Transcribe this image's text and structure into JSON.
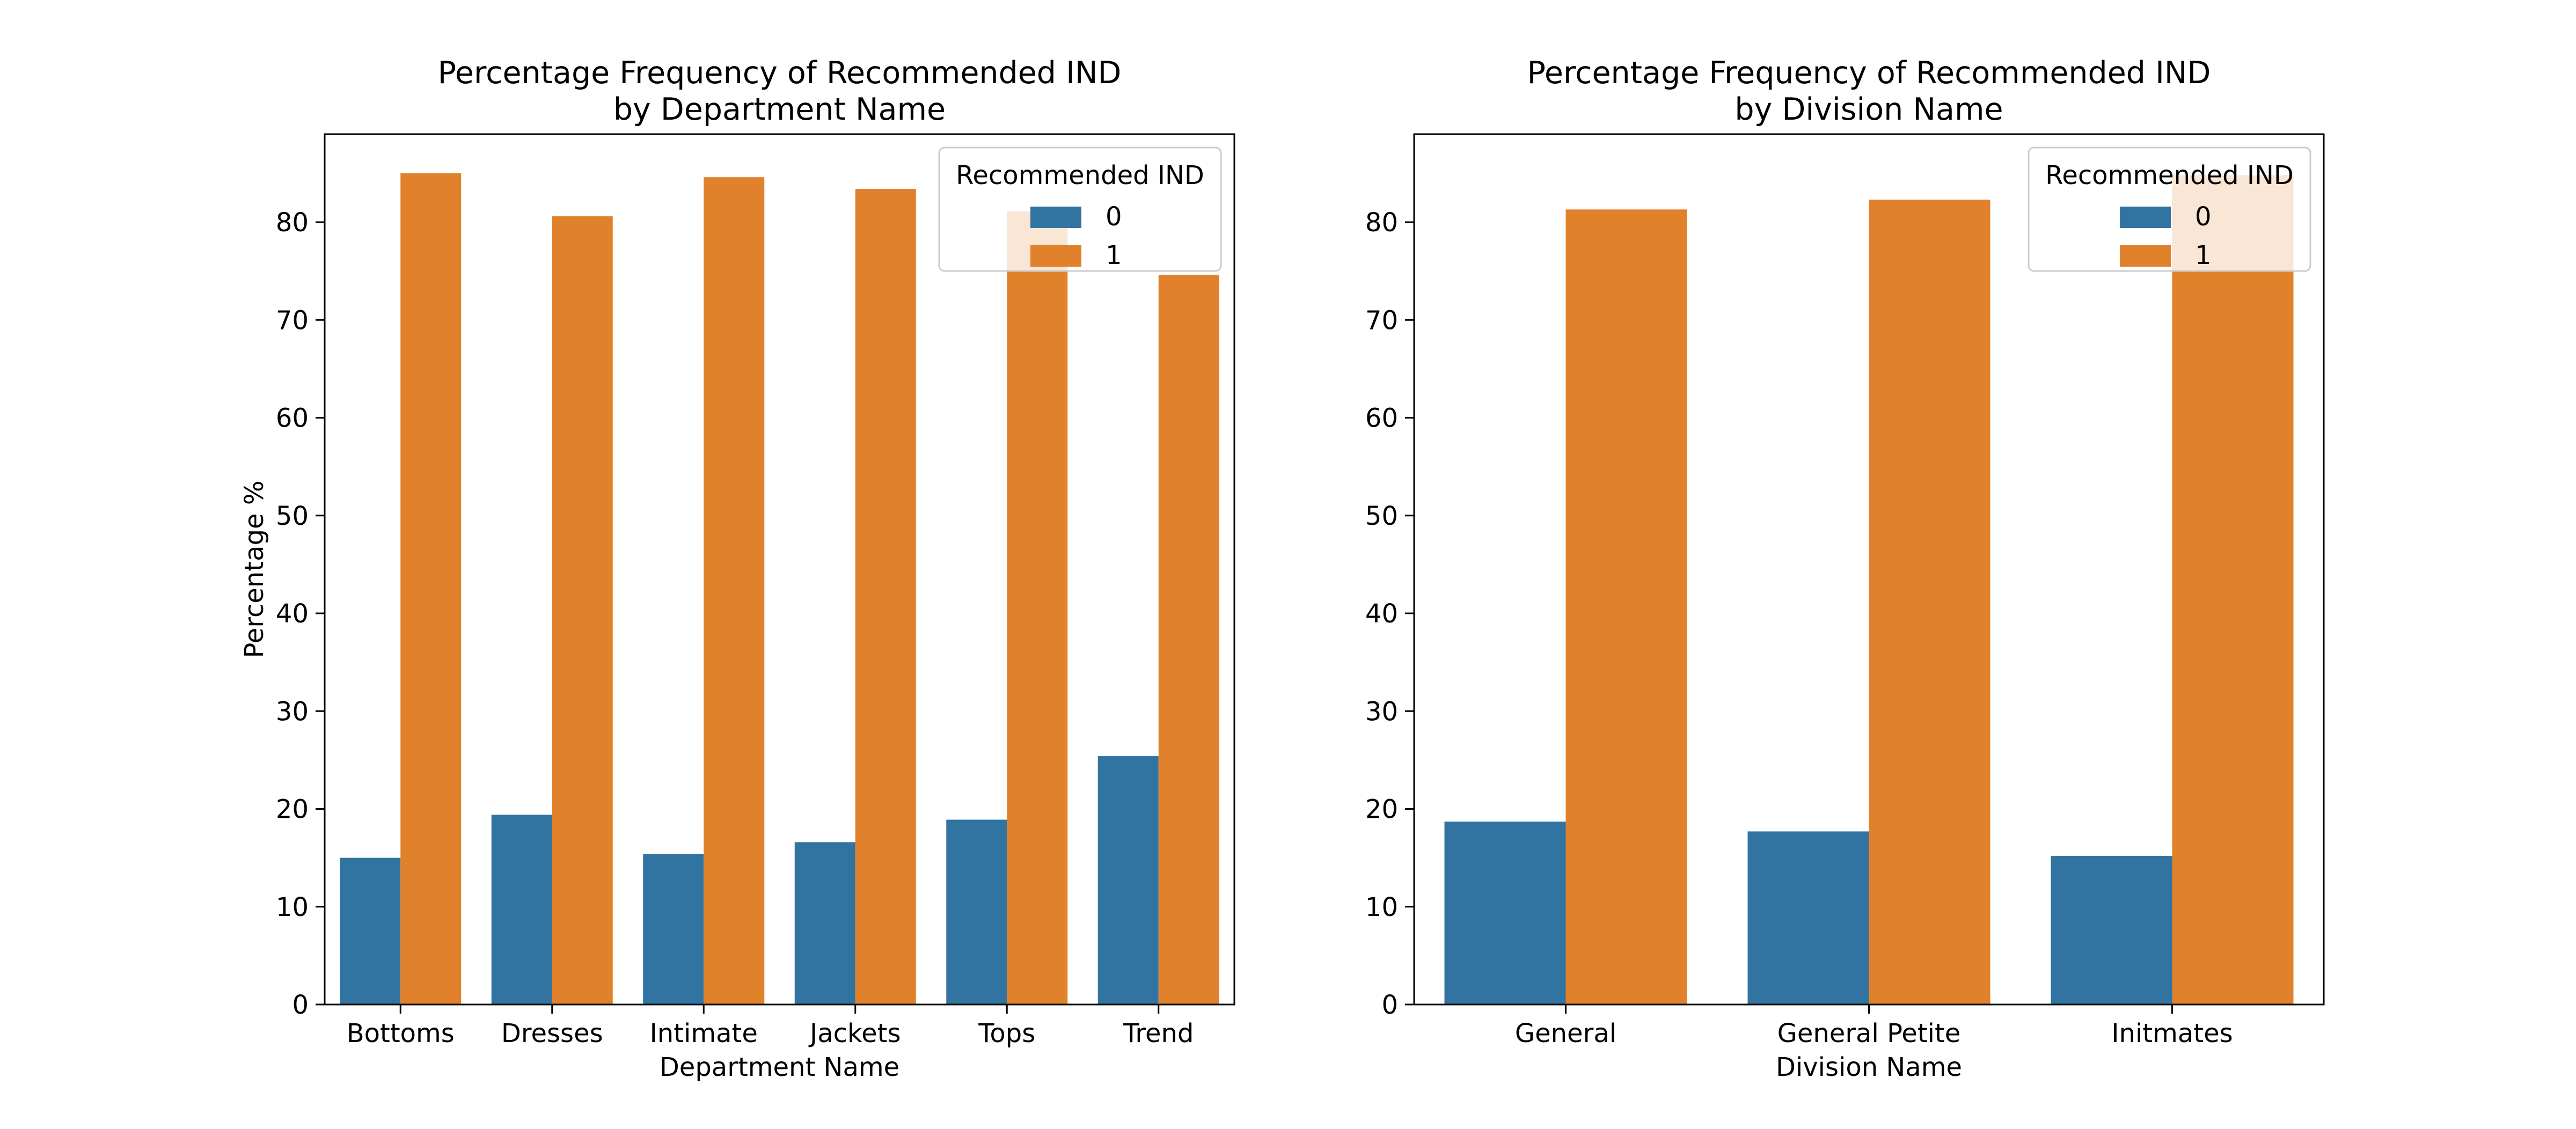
{
  "colors": {
    "series_0": "#3274a1",
    "series_1": "#e1812c"
  },
  "chart_data": [
    {
      "type": "bar",
      "title": "Percentage Frequency of Recommended IND\nby Department Name",
      "xlabel": "Department Name",
      "ylabel": "Percentage %",
      "ylim": [
        0,
        89
      ],
      "yticks": [
        0,
        10,
        20,
        30,
        40,
        50,
        60,
        70,
        80
      ],
      "categories": [
        "Bottoms",
        "Dresses",
        "Intimate",
        "Jackets",
        "Tops",
        "Trend"
      ],
      "series": [
        {
          "name": "0",
          "values": [
            15.0,
            19.4,
            15.4,
            16.6,
            18.9,
            25.4
          ]
        },
        {
          "name": "1",
          "values": [
            85.0,
            80.6,
            84.6,
            83.4,
            81.1,
            74.6
          ]
        }
      ],
      "legend": {
        "title": "Recommended IND",
        "position": "top-right"
      },
      "grid": false
    },
    {
      "type": "bar",
      "title": "Percentage Frequency of Recommended IND\nby Division Name",
      "xlabel": "Division Name",
      "ylabel": "",
      "ylim": [
        0,
        89
      ],
      "yticks": [
        0,
        10,
        20,
        30,
        40,
        50,
        60,
        70,
        80
      ],
      "categories": [
        "General",
        "General Petite",
        "Initmates"
      ],
      "series": [
        {
          "name": "0",
          "values": [
            18.7,
            17.7,
            15.2
          ]
        },
        {
          "name": "1",
          "values": [
            81.3,
            82.3,
            84.8
          ]
        }
      ],
      "legend": {
        "title": "Recommended IND",
        "position": "top-right"
      },
      "grid": false
    }
  ]
}
